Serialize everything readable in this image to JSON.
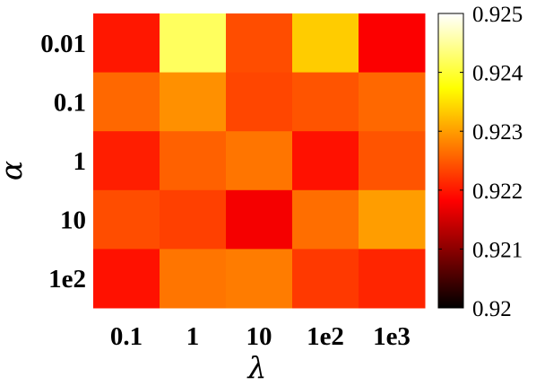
{
  "chart_data": {
    "type": "heatmap",
    "xlabel": "λ",
    "ylabel": "α",
    "x_categories": [
      "0.1",
      "1",
      "10",
      "1e2",
      "1e3"
    ],
    "y_categories": [
      "0.01",
      "0.1",
      "1",
      "10",
      "1e2"
    ],
    "values": [
      [
        0.922,
        0.9242,
        0.9224,
        0.92335,
        0.9218
      ],
      [
        0.9226,
        0.9229,
        0.92235,
        0.92245,
        0.9226
      ],
      [
        0.92205,
        0.92255,
        0.9227,
        0.92195,
        0.92245
      ],
      [
        0.9224,
        0.9223,
        0.92175,
        0.92265,
        0.923
      ],
      [
        0.92195,
        0.9227,
        0.92275,
        0.92225,
        0.9221
      ]
    ],
    "colorbar": {
      "min": 0.92,
      "max": 0.925,
      "ticks": [
        "0.925",
        "0.924",
        "0.923",
        "0.922",
        "0.921",
        "0.92"
      ],
      "colormap": "hot"
    }
  }
}
